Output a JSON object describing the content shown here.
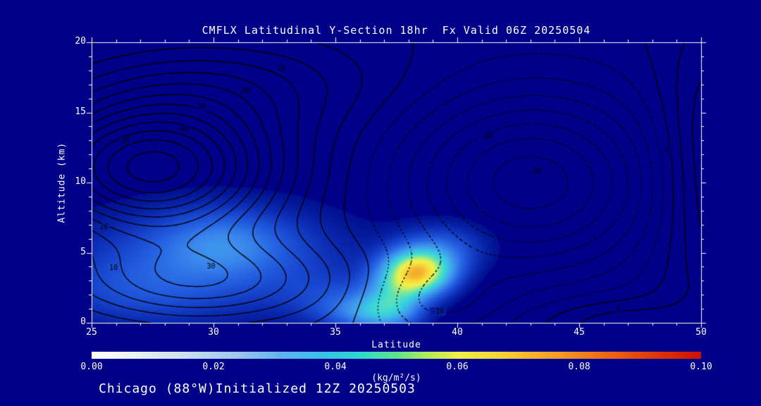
{
  "title": "CMFLX Latitudinal Y-Section 18hr  Fx Valid 06Z 20250504",
  "footer": "Chicago (88°W)Initialized 12Z 20250503",
  "colors": {
    "background": "#000089",
    "frame": "#ffffff",
    "text": "#ffffff",
    "contour_line": "#000000"
  },
  "chart_data": {
    "type": "contour",
    "title": "CMFLX Latitudinal Y-Section 18hr  Fx Valid 06Z 20250504",
    "xlabel": "Latitude",
    "ylabel": "Altitude (km)",
    "xlim": [
      25,
      50
    ],
    "ylim": [
      0,
      20
    ],
    "xticks": [
      25,
      30,
      35,
      40,
      45,
      50
    ],
    "x_minor_step": 1,
    "yticks": [
      0,
      5,
      10,
      15,
      20
    ],
    "y_minor_step": 1,
    "station": "Chicago (88°W)",
    "forecast_hour": "18hr",
    "valid": "06Z 20250504",
    "initialized": "12Z 20250503",
    "colorbar": {
      "min": 0.0,
      "max": 0.1,
      "units": "(kg/m²/s)",
      "ticks": [
        {
          "value": 0.0,
          "label": "0.00"
        },
        {
          "value": 0.02,
          "label": "0.02"
        },
        {
          "value": 0.04,
          "label": "0.04"
        },
        {
          "value": 0.06,
          "label": "0.06"
        },
        {
          "value": 0.08,
          "label": "0.08"
        },
        {
          "value": 0.1,
          "label": "0.10"
        }
      ],
      "gradient_stops": [
        [
          0.0,
          "#ffffff"
        ],
        [
          0.08,
          "#e6f1fb"
        ],
        [
          0.16,
          "#c6def5"
        ],
        [
          0.24,
          "#9ac7ee"
        ],
        [
          0.31,
          "#62b3ea"
        ],
        [
          0.38,
          "#3bc0e8"
        ],
        [
          0.44,
          "#2ed7cf"
        ],
        [
          0.5,
          "#5de48c"
        ],
        [
          0.55,
          "#aeec5e"
        ],
        [
          0.6,
          "#f0f046"
        ],
        [
          0.68,
          "#f6cf36"
        ],
        [
          0.76,
          "#f49e28"
        ],
        [
          0.84,
          "#ee6a18"
        ],
        [
          0.92,
          "#e03a0c"
        ],
        [
          1.0,
          "#cc0f05"
        ]
      ]
    },
    "fill_field": {
      "units": "kg/m²/s",
      "cutoff": 0.004,
      "colormap_stops": [
        [
          0.004,
          "#001090"
        ],
        [
          0.01,
          "#0c2cb4"
        ],
        [
          0.016,
          "#1a4ad2"
        ],
        [
          0.022,
          "#2766e4"
        ],
        [
          0.028,
          "#3a86ec"
        ],
        [
          0.034,
          "#41a4ec"
        ],
        [
          0.04,
          "#38c6e6"
        ],
        [
          0.046,
          "#40dcd2"
        ],
        [
          0.052,
          "#7ae6a0"
        ],
        [
          0.057,
          "#c2ee6a"
        ],
        [
          0.062,
          "#f2f24a"
        ],
        [
          0.068,
          "#f6d93a"
        ],
        [
          0.075,
          "#f5a62b"
        ],
        [
          0.085,
          "#ee6318"
        ],
        [
          0.1,
          "#cc1507"
        ]
      ],
      "gaussian_components": [
        {
          "amp": 0.019,
          "lat": 30.0,
          "alt": 4.5,
          "sig_lat": 4.2,
          "sig_alt": 2.8
        },
        {
          "amp": 0.013,
          "lat": 30.4,
          "alt": 5.8,
          "sig_lat": 1.8,
          "sig_alt": 1.6
        },
        {
          "amp": 0.009,
          "lat": 26.5,
          "alt": 2.0,
          "sig_lat": 2.5,
          "sig_alt": 1.8
        },
        {
          "amp": 0.062,
          "lat": 38.4,
          "alt": 3.6,
          "sig_lat": 1.0,
          "sig_alt": 1.15
        },
        {
          "amp": 0.028,
          "lat": 37.4,
          "alt": 1.5,
          "sig_lat": 0.9,
          "sig_alt": 1.4
        },
        {
          "amp": 0.02,
          "lat": 36.3,
          "alt": 0.7,
          "sig_lat": 1.1,
          "sig_alt": 0.9
        },
        {
          "amp": 0.016,
          "lat": 39.5,
          "alt": 5.3,
          "sig_lat": 1.3,
          "sig_alt": 1.3
        },
        {
          "amp": 0.01,
          "lat": 35.0,
          "alt": 1.5,
          "sig_lat": 1.5,
          "sig_alt": 1.3
        }
      ]
    },
    "contour_field": {
      "levels_solid": [
        0,
        5,
        10,
        15,
        20,
        25,
        30,
        35,
        40,
        45,
        50,
        55,
        60
      ],
      "levels_dotted": [
        -35,
        -30,
        -25,
        -20,
        -15,
        -10,
        -5
      ],
      "gaussian_components": [
        {
          "amp": 62,
          "lat": 27.5,
          "alt": 11.0,
          "sig_lat": 3.6,
          "sig_alt": 3.4
        },
        {
          "amp": 28,
          "lat": 29.5,
          "alt": 3.0,
          "sig_lat": 4.0,
          "sig_alt": 2.2
        },
        {
          "amp": 14,
          "lat": 30.5,
          "alt": 17.0,
          "sig_lat": 4.5,
          "sig_alt": 2.5
        },
        {
          "amp": -38,
          "lat": 43.0,
          "alt": 10.0,
          "sig_lat": 3.8,
          "sig_alt": 4.6
        },
        {
          "amp": -14,
          "lat": 39.0,
          "alt": 1.5,
          "sig_lat": 2.0,
          "sig_alt": 2.0
        },
        {
          "amp": 20,
          "lat": 50.5,
          "alt": 11.0,
          "sig_lat": 1.6,
          "sig_alt": 6.5
        },
        {
          "amp": 10,
          "lat": 46.5,
          "alt": 0.0,
          "sig_lat": 2.2,
          "sig_alt": 1.2
        }
      ],
      "labels": [
        {
          "text": "10",
          "lat": 32.8,
          "alt": 18.1
        },
        {
          "text": "20",
          "lat": 31.3,
          "alt": 16.5
        },
        {
          "text": "30",
          "lat": 29.5,
          "alt": 15.4
        },
        {
          "text": "40",
          "lat": 28.8,
          "alt": 13.8
        },
        {
          "text": "50",
          "lat": 26.4,
          "alt": 13.0
        },
        {
          "text": "20",
          "lat": 25.5,
          "alt": 6.8
        },
        {
          "text": "10",
          "lat": 25.9,
          "alt": 3.9
        },
        {
          "text": "30",
          "lat": 29.9,
          "alt": 4.0
        },
        {
          "text": "-10",
          "lat": 39.2,
          "alt": 0.8
        },
        {
          "text": "-20",
          "lat": 41.2,
          "alt": 13.3
        },
        {
          "text": "-30",
          "lat": 43.2,
          "alt": 10.8
        },
        {
          "text": "0",
          "lat": 48.6,
          "alt": 12.3
        },
        {
          "text": "5",
          "lat": 46.6,
          "alt": 0.9
        }
      ]
    }
  }
}
